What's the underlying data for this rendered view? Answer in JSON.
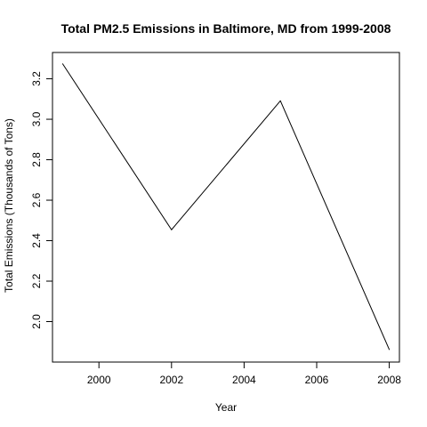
{
  "chart_data": {
    "type": "line",
    "title": "Total PM2.5 Emissions in Baltimore, MD from 1999-2008",
    "xlabel": "Year",
    "ylabel": "Total Emissions (Thousands of Tons)",
    "x": [
      1999,
      2002,
      2005,
      2008
    ],
    "y": [
      3.274,
      2.454,
      3.091,
      1.862
    ],
    "xlim": [
      1998.72,
      2008.28
    ],
    "ylim": [
      1.8,
      3.33
    ],
    "xticks": [
      2000,
      2002,
      2004,
      2006,
      2008
    ],
    "yticks": [
      2.0,
      2.2,
      2.4,
      2.6,
      2.8,
      3.0,
      3.2
    ],
    "grid": false,
    "line_color": "#000000"
  }
}
